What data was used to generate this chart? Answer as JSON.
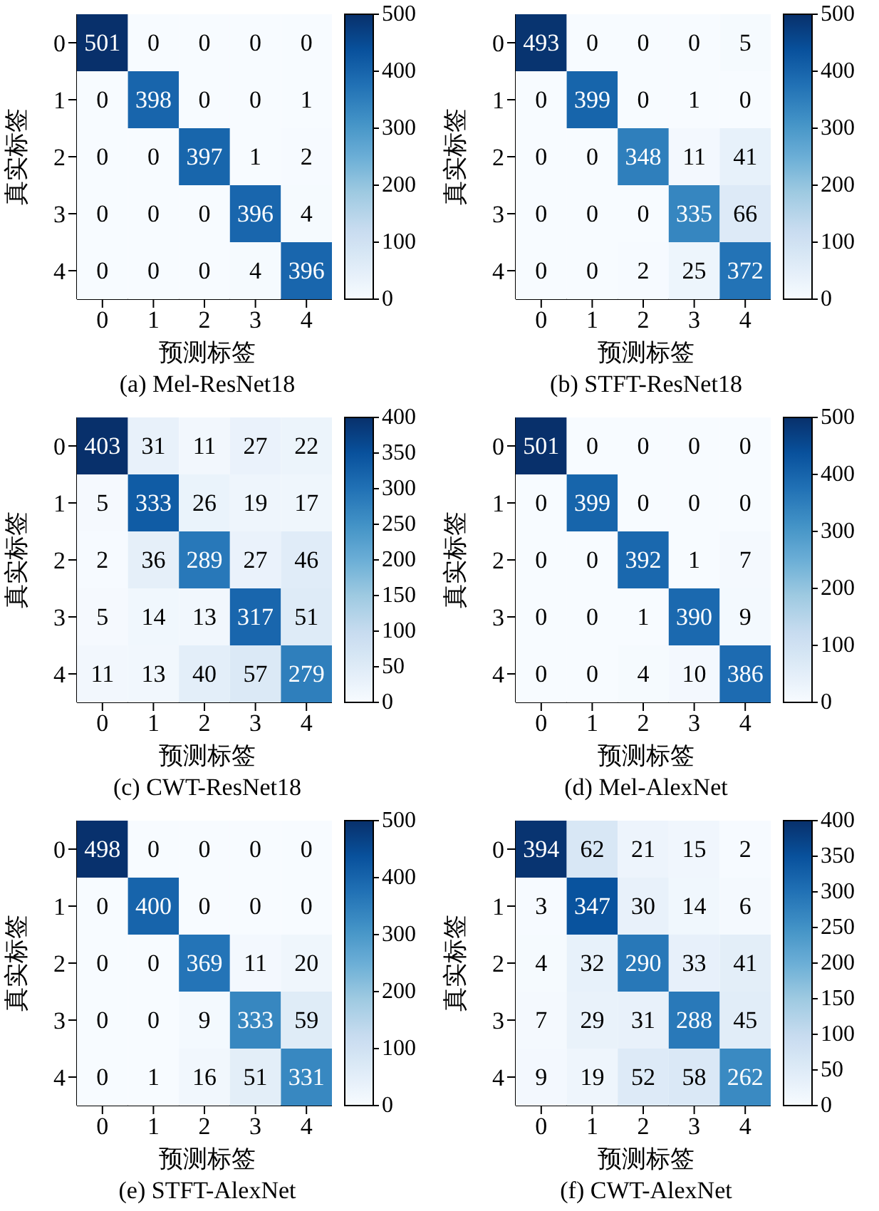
{
  "chart_data": [
    {
      "type": "heatmap",
      "title": "(a)  Mel-ResNet18",
      "xlabel": "预测标签",
      "ylabel": "真实标签",
      "categories": [
        "0",
        "1",
        "2",
        "3",
        "4"
      ],
      "y_categories": [
        "0",
        "1",
        "2",
        "3",
        "4"
      ],
      "data_labels": true,
      "clim": [
        0,
        500
      ],
      "cticks": [
        0,
        100,
        200,
        300,
        400,
        500
      ],
      "cells": [
        [
          501,
          0,
          0,
          0,
          0
        ],
        [
          0,
          398,
          0,
          0,
          1
        ],
        [
          0,
          0,
          397,
          1,
          2
        ],
        [
          0,
          0,
          0,
          396,
          4
        ],
        [
          0,
          0,
          0,
          4,
          396
        ]
      ]
    },
    {
      "type": "heatmap",
      "title": "(b)  STFT-ResNet18",
      "xlabel": "预测标签",
      "ylabel": "真实标签",
      "categories": [
        "0",
        "1",
        "2",
        "3",
        "4"
      ],
      "y_categories": [
        "0",
        "1",
        "2",
        "3",
        "4"
      ],
      "data_labels": true,
      "clim": [
        0,
        500
      ],
      "cticks": [
        0,
        100,
        200,
        300,
        400,
        500
      ],
      "cells": [
        [
          493,
          0,
          0,
          0,
          5
        ],
        [
          0,
          399,
          0,
          1,
          0
        ],
        [
          0,
          0,
          348,
          11,
          41
        ],
        [
          0,
          0,
          0,
          335,
          66
        ],
        [
          0,
          0,
          2,
          25,
          372
        ]
      ]
    },
    {
      "type": "heatmap",
      "title": "(c)  CWT-ResNet18",
      "xlabel": "预测标签",
      "ylabel": "真实标签",
      "categories": [
        "0",
        "1",
        "2",
        "3",
        "4"
      ],
      "y_categories": [
        "0",
        "1",
        "2",
        "3",
        "4"
      ],
      "data_labels": true,
      "clim": [
        0,
        400
      ],
      "cticks": [
        0,
        50,
        100,
        150,
        200,
        250,
        300,
        350,
        400
      ],
      "cells": [
        [
          403,
          31,
          11,
          27,
          22
        ],
        [
          5,
          333,
          26,
          19,
          17
        ],
        [
          2,
          36,
          289,
          27,
          46
        ],
        [
          5,
          14,
          13,
          317,
          51
        ],
        [
          11,
          13,
          40,
          57,
          279
        ]
      ]
    },
    {
      "type": "heatmap",
      "title": "(d)  Mel-AlexNet",
      "xlabel": "预测标签",
      "ylabel": "真实标签",
      "categories": [
        "0",
        "1",
        "2",
        "3",
        "4"
      ],
      "y_categories": [
        "0",
        "1",
        "2",
        "3",
        "4"
      ],
      "data_labels": true,
      "clim": [
        0,
        500
      ],
      "cticks": [
        0,
        100,
        200,
        300,
        400,
        500
      ],
      "cells": [
        [
          501,
          0,
          0,
          0,
          0
        ],
        [
          0,
          399,
          0,
          0,
          0
        ],
        [
          0,
          0,
          392,
          1,
          7
        ],
        [
          0,
          0,
          1,
          390,
          9
        ],
        [
          0,
          0,
          4,
          10,
          386
        ]
      ]
    },
    {
      "type": "heatmap",
      "title": "(e)  STFT-AlexNet",
      "xlabel": "预测标签",
      "ylabel": "真实标签",
      "categories": [
        "0",
        "1",
        "2",
        "3",
        "4"
      ],
      "y_categories": [
        "0",
        "1",
        "2",
        "3",
        "4"
      ],
      "data_labels": true,
      "clim": [
        0,
        500
      ],
      "cticks": [
        0,
        100,
        200,
        300,
        400,
        500
      ],
      "cells": [
        [
          498,
          0,
          0,
          0,
          0
        ],
        [
          0,
          400,
          0,
          0,
          0
        ],
        [
          0,
          0,
          369,
          11,
          20
        ],
        [
          0,
          0,
          9,
          333,
          59
        ],
        [
          0,
          1,
          16,
          51,
          331
        ]
      ]
    },
    {
      "type": "heatmap",
      "title": "(f)  CWT-AlexNet",
      "xlabel": "预测标签",
      "ylabel": "真实标签",
      "categories": [
        "0",
        "1",
        "2",
        "3",
        "4"
      ],
      "y_categories": [
        "0",
        "1",
        "2",
        "3",
        "4"
      ],
      "data_labels": true,
      "clim": [
        0,
        400
      ],
      "cticks": [
        0,
        50,
        100,
        150,
        200,
        250,
        300,
        350,
        400
      ],
      "cells": [
        [
          394,
          62,
          21,
          15,
          2
        ],
        [
          3,
          347,
          30,
          14,
          6
        ],
        [
          4,
          32,
          290,
          33,
          41
        ],
        [
          7,
          29,
          31,
          288,
          45
        ],
        [
          9,
          19,
          52,
          58,
          262
        ]
      ]
    }
  ]
}
